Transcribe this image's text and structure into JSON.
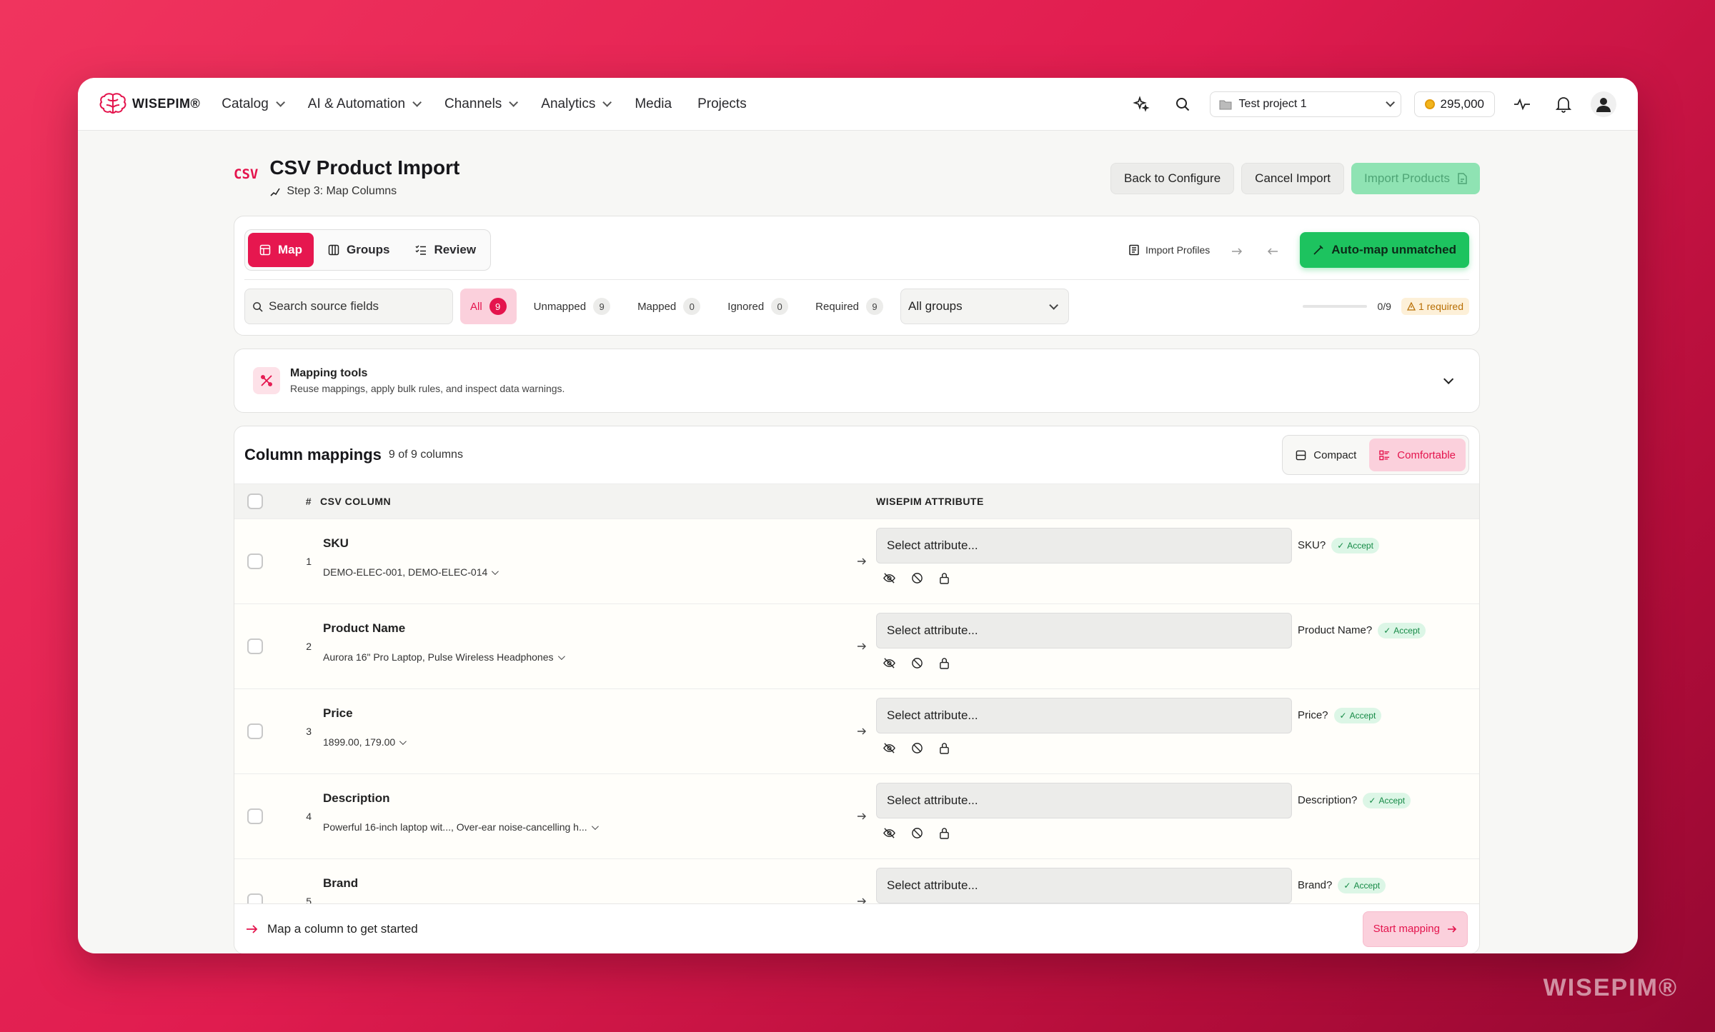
{
  "brand": {
    "name": "WISEPIM®",
    "watermark": "WISEPIM®"
  },
  "nav": {
    "items": [
      {
        "label": "Catalog",
        "dropdown": true
      },
      {
        "label": "AI & Automation",
        "dropdown": true
      },
      {
        "label": "Channels",
        "dropdown": true
      },
      {
        "label": "Analytics",
        "dropdown": true
      },
      {
        "label": "Media",
        "dropdown": false
      },
      {
        "label": "Projects",
        "dropdown": false
      }
    ],
    "project": "Test project 1",
    "credits": "295,000"
  },
  "page": {
    "badge": "CSV",
    "title": "CSV Product Import",
    "step": "Step 3: Map Columns",
    "back_btn": "Back to Configure",
    "cancel_btn": "Cancel Import",
    "import_btn": "Import Products"
  },
  "toolbar": {
    "tabs": [
      {
        "label": "Map",
        "active": true
      },
      {
        "label": "Groups",
        "active": false
      },
      {
        "label": "Review",
        "active": false
      }
    ],
    "import_profiles": "Import Profiles",
    "automap": "Auto-map unmatched",
    "search_placeholder": "Search source fields",
    "filters": [
      {
        "label": "All",
        "count": "9",
        "active": true
      },
      {
        "label": "Unmapped",
        "count": "9",
        "active": false
      },
      {
        "label": "Mapped",
        "count": "0",
        "active": false
      },
      {
        "label": "Ignored",
        "count": "0",
        "active": false
      },
      {
        "label": "Required",
        "count": "9",
        "active": false
      }
    ],
    "group_select": "All groups",
    "progress_value": 0,
    "progress_text": "0/9",
    "required_badge": "1 required"
  },
  "tools": {
    "title": "Mapping tools",
    "subtitle": "Reuse mappings, apply bulk rules, and inspect data warnings."
  },
  "mappings": {
    "title": "Column mappings",
    "count": "9 of 9 columns",
    "density": {
      "compact": "Compact",
      "comfortable": "Comfortable"
    },
    "headers": {
      "num": "#",
      "csv": "CSV COLUMN",
      "attr": "WISEPIM ATTRIBUTE"
    },
    "rows": [
      {
        "num": "1",
        "name": "SKU",
        "sample": "DEMO-ELEC-001, DEMO-ELEC-014",
        "placeholder": "Select attribute...",
        "suggestion": "SKU?",
        "accept": "Accept"
      },
      {
        "num": "2",
        "name": "Product Name",
        "sample": "Aurora 16\" Pro Laptop, Pulse Wireless Headphones",
        "placeholder": "Select attribute...",
        "suggestion": "Product Name?",
        "accept": "Accept"
      },
      {
        "num": "3",
        "name": "Price",
        "sample": "1899.00, 179.00",
        "placeholder": "Select attribute...",
        "suggestion": "Price?",
        "accept": "Accept"
      },
      {
        "num": "4",
        "name": "Description",
        "sample": "Powerful 16-inch laptop wit..., Over-ear noise-cancelling h...",
        "placeholder": "Select attribute...",
        "suggestion": "Description?",
        "accept": "Accept"
      },
      {
        "num": "5",
        "name": "Brand",
        "sample": "",
        "placeholder": "Select attribute...",
        "suggestion": "Brand?",
        "accept": "Accept"
      }
    ],
    "footer_text": "Map a column to get started",
    "start_btn": "Start mapping"
  },
  "colors": {
    "accent": "#e6174f",
    "success": "#1dc35f",
    "warning": "#b86f05"
  }
}
